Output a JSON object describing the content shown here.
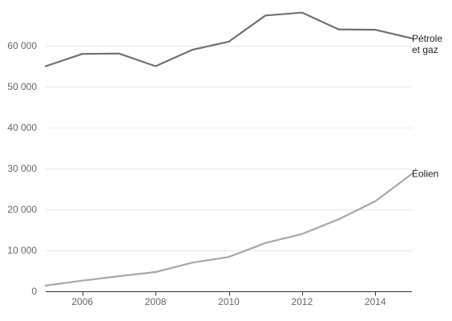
{
  "chart_data": {
    "type": "line",
    "title": "",
    "xlabel": "",
    "ylabel": "",
    "x": [
      2005,
      2006,
      2007,
      2008,
      2009,
      2010,
      2011,
      2012,
      2013,
      2014,
      2015
    ],
    "xlim": [
      2005,
      2015
    ],
    "ylim": [
      0,
      70000
    ],
    "x_ticks": [
      2006,
      2008,
      2010,
      2012,
      2014
    ],
    "x_tick_labels": [
      "2006",
      "2008",
      "2010",
      "2012",
      "2014"
    ],
    "y_ticks": [
      0,
      10000,
      20000,
      30000,
      40000,
      50000,
      60000
    ],
    "y_tick_labels": [
      "0",
      "10 000",
      "20 000",
      "30 000",
      "40 000",
      "50 000",
      "60 000"
    ],
    "grid": true,
    "legend": "inline labels at line ends",
    "series": [
      {
        "name": "Pétrole et gaz",
        "label_lines": [
          "Pétrole",
          "et gaz"
        ],
        "color": "#707070",
        "values": [
          55000,
          58000,
          58100,
          55000,
          59000,
          61000,
          67400,
          68100,
          64000,
          63900,
          61800
        ]
      },
      {
        "name": "Éolien",
        "label_lines": [
          "Éolien"
        ],
        "color": "#a8a8a8",
        "values": [
          1400,
          2600,
          3700,
          4700,
          7000,
          8400,
          11800,
          14000,
          17600,
          22000,
          28700
        ]
      }
    ]
  }
}
